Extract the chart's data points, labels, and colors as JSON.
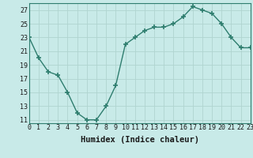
{
  "x": [
    0,
    1,
    2,
    3,
    4,
    5,
    6,
    7,
    8,
    9,
    10,
    11,
    12,
    13,
    14,
    15,
    16,
    17,
    18,
    19,
    20,
    21,
    22,
    23
  ],
  "y": [
    23,
    20,
    18,
    17.5,
    15,
    12,
    11,
    11,
    13,
    16,
    22,
    23,
    24,
    24.5,
    24.5,
    25,
    26,
    27.5,
    27,
    26.5,
    25,
    23,
    21.5,
    21.5
  ],
  "line_color": "#2e7d6e",
  "bg_color": "#c8eae8",
  "grid_color": "#b0d4d0",
  "xlabel": "Humidex (Indice chaleur)",
  "xlim": [
    0,
    23
  ],
  "ylim": [
    10.5,
    28
  ],
  "yticks": [
    11,
    13,
    15,
    17,
    19,
    21,
    23,
    25,
    27
  ],
  "xticks": [
    0,
    1,
    2,
    3,
    4,
    5,
    6,
    7,
    8,
    9,
    10,
    11,
    12,
    13,
    14,
    15,
    16,
    17,
    18,
    19,
    20,
    21,
    22,
    23
  ],
  "marker": "+",
  "markersize": 4,
  "linewidth": 1.0,
  "xlabel_fontsize": 7.5,
  "tick_fontsize": 6.0
}
